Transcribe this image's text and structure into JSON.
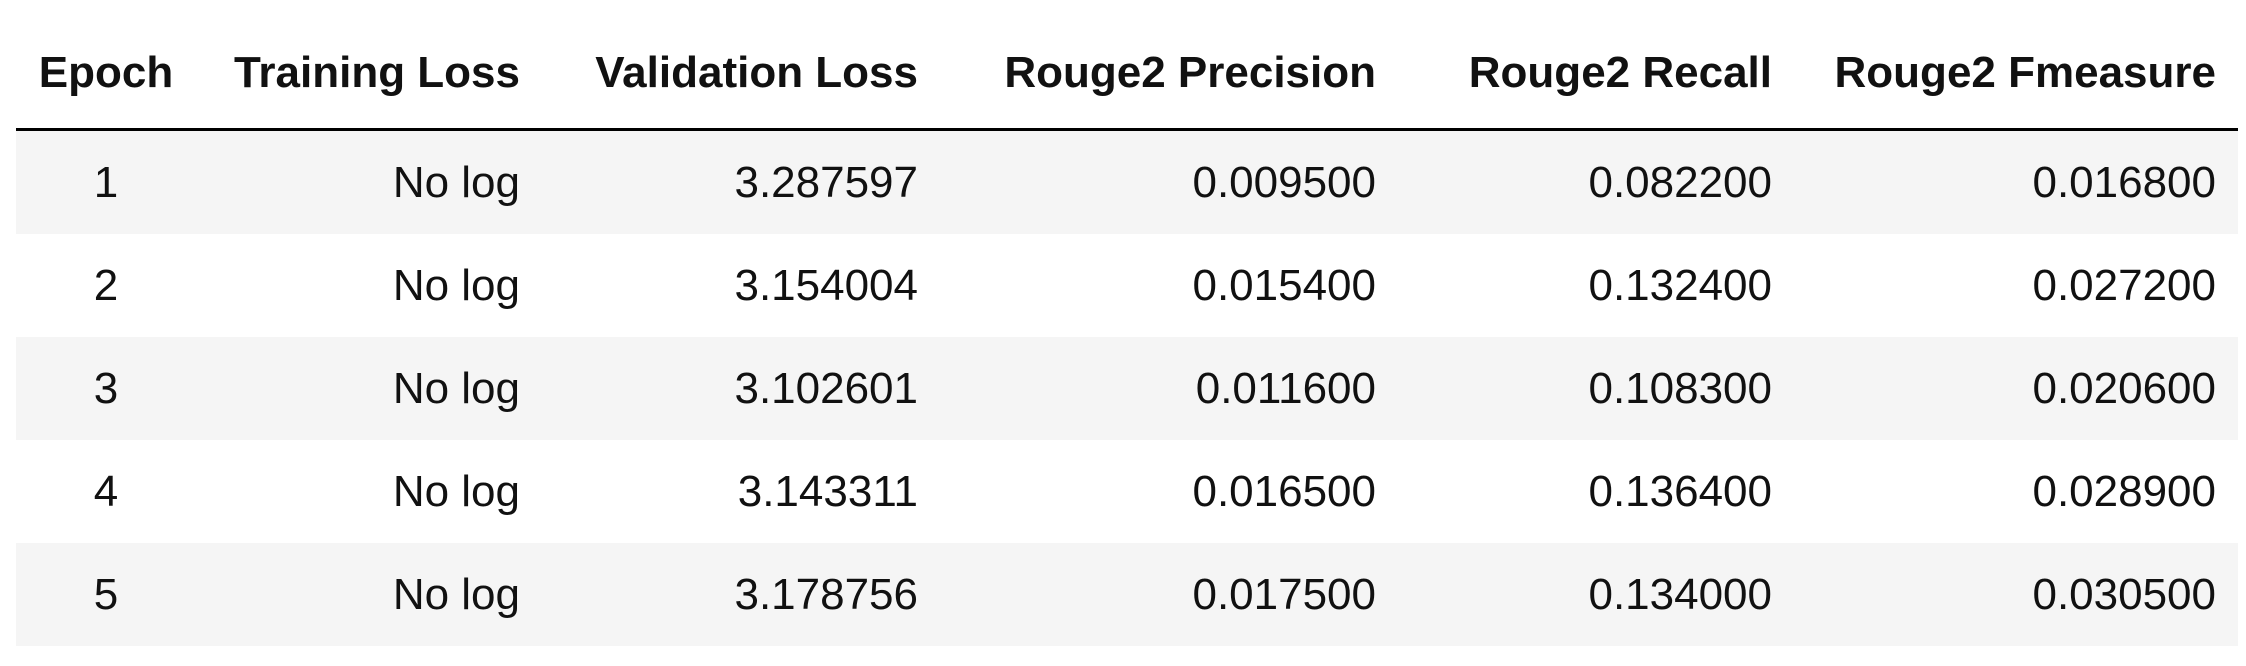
{
  "table": {
    "columns": [
      "Epoch",
      "Training Loss",
      "Validation Loss",
      "Rouge2 Precision",
      "Rouge2 Recall",
      "Rouge2 Fmeasure"
    ],
    "rows": [
      [
        "1",
        "No log",
        "3.287597",
        "0.009500",
        "0.082200",
        "0.016800"
      ],
      [
        "2",
        "No log",
        "3.154004",
        "0.015400",
        "0.132400",
        "0.027200"
      ],
      [
        "3",
        "No log",
        "3.102601",
        "0.011600",
        "0.108300",
        "0.020600"
      ],
      [
        "4",
        "No log",
        "3.143311",
        "0.016500",
        "0.136400",
        "0.028900"
      ],
      [
        "5",
        "No log",
        "3.178756",
        "0.017500",
        "0.134000",
        "0.030500"
      ]
    ]
  }
}
